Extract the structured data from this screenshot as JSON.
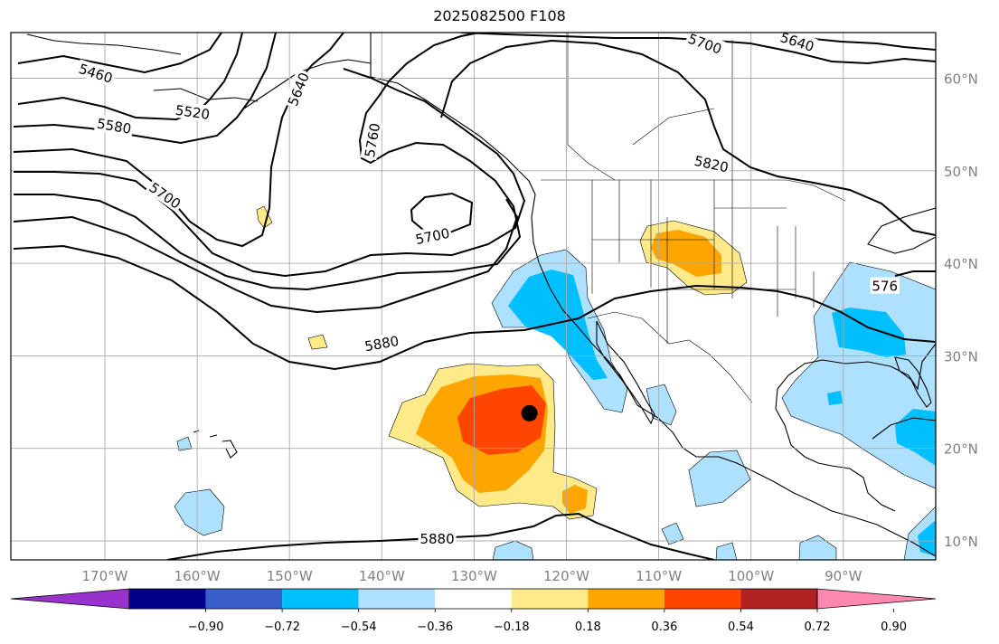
{
  "title": "2025082500 F108",
  "lat_labels": [
    {
      "text": "60°N",
      "lat": 60
    },
    {
      "text": "50°N",
      "lat": 50
    },
    {
      "text": "40°N",
      "lat": 40
    },
    {
      "text": "30°N",
      "lat": 30
    },
    {
      "text": "20°N",
      "lat": 20
    },
    {
      "text": "10°N",
      "lat": 10
    }
  ],
  "lon_labels": [
    {
      "text": "170°W",
      "lon": -170
    },
    {
      "text": "160°W",
      "lon": -160
    },
    {
      "text": "150°W",
      "lon": -150
    },
    {
      "text": "140°W",
      "lon": -140
    },
    {
      "text": "130°W",
      "lon": -130
    },
    {
      "text": "120°W",
      "lon": -120
    },
    {
      "text": "110°W",
      "lon": -110
    },
    {
      "text": "100°W",
      "lon": -100
    },
    {
      "text": "90°W",
      "lon": -90
    }
  ],
  "colorbar": {
    "colors": [
      "#9932cc",
      "#00008b",
      "#3a5fcd",
      "#00bfff",
      "#aee0ff",
      "#ffffff",
      "#ffea8a",
      "#ffa500",
      "#ff4500",
      "#b22222",
      "#ff88b0"
    ],
    "tick_labels": [
      "−0.90",
      "−0.72",
      "−0.54",
      "−0.36",
      "−0.18",
      "0.18",
      "0.36",
      "0.54",
      "0.72",
      "0.90"
    ]
  },
  "contour_labels": [
    {
      "text": "5460",
      "lon": -171,
      "lat": 60.5,
      "rot": 18
    },
    {
      "text": "5520",
      "lon": -160.5,
      "lat": 56.3,
      "rot": 8
    },
    {
      "text": "5580",
      "lon": -169,
      "lat": 54.8,
      "rot": 10
    },
    {
      "text": "5640",
      "lon": -149,
      "lat": 58.8,
      "rot": -68
    },
    {
      "text": "5700",
      "lon": -163.5,
      "lat": 47.3,
      "rot": 35
    },
    {
      "text": "5700",
      "lon": -134.5,
      "lat": 42.9,
      "rot": -12
    },
    {
      "text": "5760",
      "lon": -141,
      "lat": 53.3,
      "rot": -80
    },
    {
      "text": "5700",
      "lon": -105,
      "lat": 63.7,
      "rot": 20
    },
    {
      "text": "5640",
      "lon": -95,
      "lat": 63.9,
      "rot": 18
    },
    {
      "text": "5820",
      "lon": -104.3,
      "lat": 50.7,
      "rot": 12
    },
    {
      "text": "5880",
      "lon": -140,
      "lat": 31.3,
      "rot": -10
    },
    {
      "text": "5880",
      "lon": -134,
      "lat": 10.2,
      "rot": 0
    },
    {
      "text": "576",
      "lon": -85.5,
      "lat": 37.5,
      "rot": 0
    }
  ],
  "station_point": {
    "lon": -124,
    "lat": 23.8
  }
}
